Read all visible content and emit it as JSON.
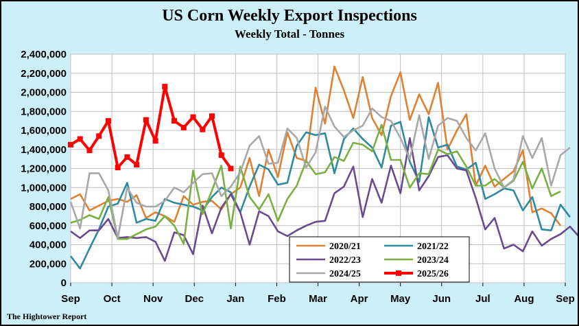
{
  "chart_data": {
    "type": "line",
    "title": "US Corn Weekly Export Inspections",
    "subtitle": "Weekly Total - Tonnes",
    "xlabel": "",
    "ylabel": "",
    "source": "The Hightower Report",
    "x_ticks": [
      "Sep",
      "Oct",
      "Nov",
      "Dec",
      "Jan",
      "Feb",
      "Mar",
      "Apr",
      "May",
      "Jun",
      "Jul",
      "Aug",
      "Sep"
    ],
    "y_ticks": [
      "0",
      "200,000",
      "400,000",
      "600,000",
      "800,000",
      "1,000,000",
      "1,200,000",
      "1,400,000",
      "1,600,000",
      "1,800,000",
      "2,000,000",
      "2,200,000",
      "2,400,000"
    ],
    "ylim": [
      0,
      2400000
    ],
    "grid": true,
    "legend_position": "bottom-center",
    "colors": {
      "background": "#cdf0f8",
      "plot_background": "#ffffff",
      "grid": "#c0c0c0"
    },
    "series": [
      {
        "name": "2020/21",
        "color": "#e08030",
        "values": [
          880000,
          930000,
          760000,
          810000,
          860000,
          880000,
          850000,
          920000,
          680000,
          740000,
          700000,
          640000,
          910000,
          820000,
          850000,
          860000,
          770000,
          930000,
          1000000,
          1310000,
          910000,
          1400000,
          1110000,
          1580000,
          1310000,
          1280000,
          2050000,
          1670000,
          2270000,
          2020000,
          1730000,
          2160000,
          1730000,
          1550000,
          1960000,
          2210000,
          1710000,
          1980000,
          1770000,
          2100000,
          1400000,
          1600000,
          1770000,
          1020000,
          1230000,
          1010000,
          1090000,
          1170000,
          1390000,
          740000,
          780000,
          730000,
          600000
        ]
      },
      {
        "name": "2021/22",
        "color": "#2d8aa0",
        "values": [
          280000,
          150000,
          360000,
          560000,
          800000,
          830000,
          1050000,
          630000,
          670000,
          650000,
          880000,
          840000,
          820000,
          800000,
          760000,
          900000,
          1000000,
          950000,
          740000,
          1010000,
          1240000,
          1190000,
          1030000,
          1050000,
          1440000,
          1580000,
          1550000,
          1570000,
          1150000,
          1510000,
          1620000,
          1510000,
          1420000,
          1210000,
          1650000,
          1690000,
          1270000,
          1060000,
          1740000,
          1420000,
          1450000,
          1220000,
          1190000,
          1260000,
          880000,
          930000,
          990000,
          970000,
          760000,
          900000,
          560000,
          550000,
          820000,
          690000
        ]
      },
      {
        "name": "2022/23",
        "color": "#6a4a90",
        "values": [
          540000,
          470000,
          550000,
          550000,
          670000,
          470000,
          480000,
          470000,
          480000,
          430000,
          230000,
          530000,
          500000,
          300000,
          810000,
          520000,
          790000,
          930000,
          740000,
          400000,
          750000,
          700000,
          540000,
          490000,
          550000,
          600000,
          640000,
          650000,
          940000,
          1010000,
          1220000,
          690000,
          1090000,
          840000,
          1230000,
          940000,
          1520000,
          970000,
          1120000,
          1320000,
          1340000,
          1200000,
          1180000,
          890000,
          560000,
          680000,
          360000,
          400000,
          330000,
          540000,
          390000,
          460000,
          510000,
          590000,
          480000
        ]
      },
      {
        "name": "2023/24",
        "color": "#7ab040",
        "values": [
          630000,
          660000,
          710000,
          670000,
          900000,
          460000,
          460000,
          510000,
          560000,
          590000,
          700000,
          600000,
          410000,
          1180000,
          720000,
          970000,
          1230000,
          570000,
          1220000,
          900000,
          770000,
          930000,
          650000,
          880000,
          1020000,
          1280000,
          1140000,
          1160000,
          1320000,
          1280000,
          1470000,
          1450000,
          1380000,
          1660000,
          1290000,
          1290000,
          1000000,
          1150000,
          1140000,
          1400000,
          1350000,
          1380000,
          1220000,
          1020000,
          1020000,
          1090000,
          1000000,
          1070000,
          1270000,
          990000,
          1200000,
          910000,
          960000
        ]
      },
      {
        "name": "2024/25",
        "color": "#a8a8a8",
        "values": [
          850000,
          570000,
          1150000,
          1150000,
          970000,
          470000,
          1000000,
          840000,
          800000,
          800000,
          860000,
          1000000,
          950000,
          1050000,
          1140000,
          1150000,
          910000,
          1010000,
          1160000,
          1440000,
          1540000,
          1250000,
          1260000,
          1620000,
          1520000,
          1210000,
          1370000,
          1850000,
          1640000,
          1530000,
          1600000,
          1650000,
          1830000,
          1740000,
          1700000,
          1520000,
          1300000,
          1760000,
          1300000,
          1650000,
          1730000,
          1700000,
          1520000,
          1390000,
          1570000,
          1200000,
          1000000,
          1080000,
          1540000,
          1310000,
          1520000,
          1020000,
          1340000,
          1420000
        ]
      },
      {
        "name": "2025/26",
        "color": "#ff0000",
        "marker": "square",
        "values": [
          1450000,
          1510000,
          1390000,
          1540000,
          1700000,
          1210000,
          1320000,
          1240000,
          1710000,
          1490000,
          2060000,
          1700000,
          1630000,
          1740000,
          1610000,
          1750000,
          1340000,
          1200000
        ]
      }
    ]
  }
}
